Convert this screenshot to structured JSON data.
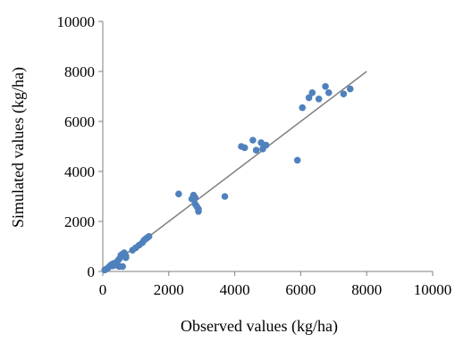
{
  "chart_data": {
    "type": "scatter",
    "title": "",
    "xlabel": "Observed values (kg/ha)",
    "ylabel": "Simulated values (kg/ha)",
    "xlim": [
      0,
      10000
    ],
    "ylim": [
      0,
      10000
    ],
    "x_ticks": [
      0,
      2000,
      4000,
      6000,
      8000,
      10000
    ],
    "y_ticks": [
      0,
      2000,
      4000,
      6000,
      8000,
      10000
    ],
    "grid": false,
    "legend": "none",
    "colors": {
      "points": "#4F81BD",
      "line": "#7F7F7F",
      "axis": "#7F7F7F"
    },
    "reference_line": {
      "from": [
        0,
        0
      ],
      "to": [
        8000,
        8000
      ]
    },
    "series": [
      {
        "points": [
          [
            60,
            60
          ],
          [
            100,
            90
          ],
          [
            150,
            130
          ],
          [
            200,
            200
          ],
          [
            250,
            260
          ],
          [
            300,
            300
          ],
          [
            300,
            220
          ],
          [
            350,
            330
          ],
          [
            400,
            250
          ],
          [
            450,
            420
          ],
          [
            500,
            200
          ],
          [
            500,
            500
          ],
          [
            550,
            600
          ],
          [
            550,
            650
          ],
          [
            600,
            700
          ],
          [
            600,
            200
          ],
          [
            650,
            750
          ],
          [
            700,
            550
          ],
          [
            700,
            620
          ],
          [
            900,
            850
          ],
          [
            1000,
            950
          ],
          [
            1100,
            1050
          ],
          [
            1200,
            1150
          ],
          [
            1250,
            1250
          ],
          [
            1300,
            1300
          ],
          [
            1350,
            1350
          ],
          [
            1400,
            1400
          ],
          [
            2300,
            3100
          ],
          [
            2700,
            2900
          ],
          [
            2750,
            3050
          ],
          [
            2800,
            2950
          ],
          [
            2800,
            2700
          ],
          [
            2850,
            2600
          ],
          [
            2900,
            2500
          ],
          [
            2900,
            2400
          ],
          [
            3700,
            3000
          ],
          [
            4200,
            5000
          ],
          [
            4300,
            4950
          ],
          [
            4550,
            5250
          ],
          [
            4650,
            4850
          ],
          [
            4800,
            5150
          ],
          [
            4850,
            4900
          ],
          [
            4950,
            5050
          ],
          [
            5900,
            4450
          ],
          [
            6050,
            6550
          ],
          [
            6250,
            6950
          ],
          [
            6350,
            7150
          ],
          [
            6550,
            6900
          ],
          [
            6750,
            7400
          ],
          [
            6850,
            7150
          ],
          [
            7300,
            7100
          ],
          [
            7500,
            7300
          ]
        ]
      }
    ]
  }
}
